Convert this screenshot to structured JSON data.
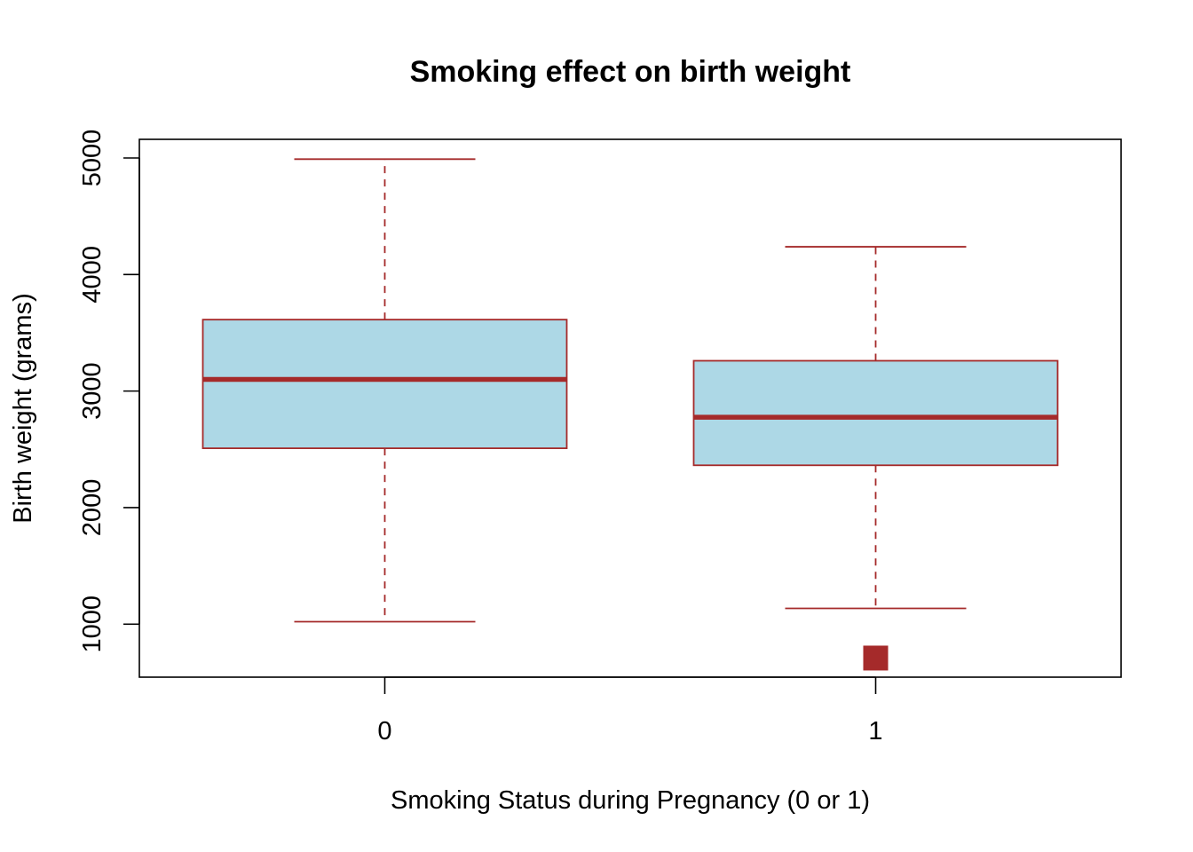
{
  "chart_data": {
    "type": "boxplot",
    "title": "Smoking effect on birth weight",
    "xlabel": "Smoking Status during Pregnancy (0 or 1)",
    "ylabel": "Birth weight (grams)",
    "categories": [
      "0",
      "1"
    ],
    "y_ticks": [
      1000,
      2000,
      3000,
      4000,
      5000
    ],
    "ylim": [
      545,
      5160
    ],
    "boxes": [
      {
        "category": "0",
        "whisker_low": 1021,
        "q1": 2509,
        "median": 3100,
        "q3": 3613,
        "whisker_high": 4990,
        "outliers": []
      },
      {
        "category": "1",
        "whisker_low": 1135,
        "q1": 2363,
        "median": 2775,
        "q3": 3260,
        "whisker_high": 4238,
        "outliers": [
          709
        ]
      }
    ],
    "colors": {
      "box_fill": "#add8e6",
      "box_border": "#a52a2a"
    },
    "grid": false,
    "legend": "none"
  }
}
